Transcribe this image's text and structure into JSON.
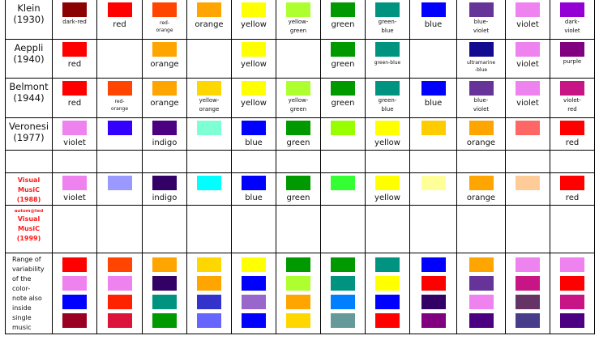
{
  "rows": [
    {
      "header": {
        "name": "Klein",
        "year": "(1930)"
      },
      "cells": [
        {
          "color": "#8B0000",
          "label": "dark-red",
          "size": "sm"
        },
        {
          "color": "#FF0000",
          "label": "red",
          "size": "md"
        },
        {
          "color": "#FF4500",
          "label": "red-\norange",
          "size": "xs"
        },
        {
          "color": "#FFA500",
          "label": "orange",
          "size": "md"
        },
        {
          "color": "#FFFF00",
          "label": "yellow",
          "size": "md"
        },
        {
          "color": "#ADFF2F",
          "label": "yellow-\ngreen",
          "size": "sm"
        },
        {
          "color": "#009900",
          "label": "green",
          "size": "md"
        },
        {
          "color": "#009480",
          "label": "green-\nblue",
          "size": "sm"
        },
        {
          "color": "#0000FF",
          "label": "blue",
          "size": "md"
        },
        {
          "color": "#663399",
          "label": "blue-\nviolet",
          "size": "sm"
        },
        {
          "color": "#EE82EE",
          "label": "violet",
          "size": "md"
        },
        {
          "color": "#9400D3",
          "label": "dark-\nviolet",
          "size": "sm"
        }
      ]
    },
    {
      "header": {
        "name": "Aeppli",
        "year": "(1940)"
      },
      "cells": [
        {
          "color": "#FF0000",
          "label": "red",
          "size": "md"
        },
        {
          "color": "",
          "label": "",
          "size": "md"
        },
        {
          "color": "#FFA500",
          "label": "orange",
          "size": "md"
        },
        {
          "color": "",
          "label": "",
          "size": "md"
        },
        {
          "color": "#FFFF00",
          "label": "yellow",
          "size": "md"
        },
        {
          "color": "",
          "label": "",
          "size": "md"
        },
        {
          "color": "#009900",
          "label": "green",
          "size": "md"
        },
        {
          "color": "#009480",
          "label": "green-blue",
          "size": "xs"
        },
        {
          "color": "",
          "label": "",
          "size": "md"
        },
        {
          "color": "#120A8F",
          "label": "ultramarine\n-blue",
          "size": "xs"
        },
        {
          "color": "#EE82EE",
          "label": "violet",
          "size": "md"
        },
        {
          "color": "#800080",
          "label": "purple",
          "size": "sm"
        }
      ]
    },
    {
      "header": {
        "name": "Belmont",
        "year": "(1944)"
      },
      "cells": [
        {
          "color": "#FF0000",
          "label": "red",
          "size": "md"
        },
        {
          "color": "#FF4500",
          "label": "red-\norange",
          "size": "xs"
        },
        {
          "color": "#FFA500",
          "label": "orange",
          "size": "md"
        },
        {
          "color": "#FFD700",
          "label": "yellow-\norange",
          "size": "sm"
        },
        {
          "color": "#FFFF00",
          "label": "yellow",
          "size": "md"
        },
        {
          "color": "#ADFF2F",
          "label": "yellow-\ngreen",
          "size": "sm"
        },
        {
          "color": "#009900",
          "label": "green",
          "size": "md"
        },
        {
          "color": "#009480",
          "label": "green-\nblue",
          "size": "sm"
        },
        {
          "color": "#0000FF",
          "label": "blue",
          "size": "md"
        },
        {
          "color": "#663399",
          "label": "blue-\nviolet",
          "size": "sm"
        },
        {
          "color": "#EE82EE",
          "label": "violet",
          "size": "md"
        },
        {
          "color": "#C71585",
          "label": "violet-\nred",
          "size": "sm"
        }
      ]
    },
    {
      "header": {
        "name": "Veronesi",
        "year": "(1977)"
      },
      "cells": [
        {
          "color": "#EE82EE",
          "label": "violet",
          "size": "md"
        },
        {
          "color": "#3300FF",
          "label": "",
          "size": "md"
        },
        {
          "color": "#4B0082",
          "label": "indigo",
          "size": "md"
        },
        {
          "color": "#7FFFD4",
          "label": "",
          "size": "md"
        },
        {
          "color": "#0000FF",
          "label": "blue",
          "size": "md"
        },
        {
          "color": "#009900",
          "label": "green",
          "size": "md"
        },
        {
          "color": "#99FF00",
          "label": "",
          "size": "md"
        },
        {
          "color": "#FFFF00",
          "label": "yellow",
          "size": "md"
        },
        {
          "color": "#FFCC00",
          "label": "",
          "size": "md"
        },
        {
          "color": "#FFA500",
          "label": "orange",
          "size": "md"
        },
        {
          "color": "#FF6666",
          "label": "",
          "size": "md"
        },
        {
          "color": "#FF0000",
          "label": "red",
          "size": "md"
        }
      ]
    }
  ],
  "visual_music_1988": {
    "header": {
      "line1": "Visual",
      "line2": "MusiC",
      "line3": "(1988)"
    },
    "cells": [
      {
        "color": "#EE82EE",
        "label": "violet"
      },
      {
        "color": "#9999FF",
        "label": ""
      },
      {
        "color": "#330066",
        "label": "indigo"
      },
      {
        "color": "#00FFFF",
        "label": ""
      },
      {
        "color": "#0000FF",
        "label": "blue"
      },
      {
        "color": "#009900",
        "label": "green"
      },
      {
        "color": "#33FF33",
        "label": ""
      },
      {
        "color": "#FFFF00",
        "label": "yellow"
      },
      {
        "color": "#FFFF99",
        "label": ""
      },
      {
        "color": "#FFA500",
        "label": "orange"
      },
      {
        "color": "#FFCC99",
        "label": ""
      },
      {
        "color": "#FF0000",
        "label": "red"
      }
    ]
  },
  "automated_visual_music_1999": {
    "header": {
      "line0": "autom@ted",
      "line1": "Visual",
      "line2": "MusiC",
      "line3": "(1999)"
    }
  },
  "range": {
    "header": [
      "Range of",
      "variability",
      "of the",
      "color-",
      "note also",
      "inside",
      "single",
      "music"
    ],
    "columns": [
      [
        "#FF0000",
        "#EE82EE",
        "#0000FF",
        "#990022"
      ],
      [
        "#FF4500",
        "#EE82EE",
        "#FF2200",
        "#DC143C"
      ],
      [
        "#FFA500",
        "#330066",
        "#009480",
        "#009900"
      ],
      [
        "#FFD700",
        "#FFA500",
        "#3333CC",
        "#6666FF"
      ],
      [
        "#FFFF00",
        "#0000FF",
        "#9966CC",
        "#0000FF"
      ],
      [
        "#009900",
        "#ADFF2F",
        "#FFA500",
        "#FFD700"
      ],
      [
        "#009900",
        "#009480",
        "#0080FF",
        "#669999"
      ],
      [
        "#009480",
        "#FFFF00",
        "#0000FF",
        "#FF0000"
      ],
      [
        "#0000FF",
        "#FF0000",
        "#330066",
        "#800080"
      ],
      [
        "#FFA500",
        "#663399",
        "#EE82EE",
        "#4B0082"
      ],
      [
        "#EE82EE",
        "#C71585",
        "#663366",
        "#483D8B"
      ],
      [
        "#EE82EE",
        "#FF0000",
        "#C71585",
        "#4B0082"
      ]
    ]
  }
}
